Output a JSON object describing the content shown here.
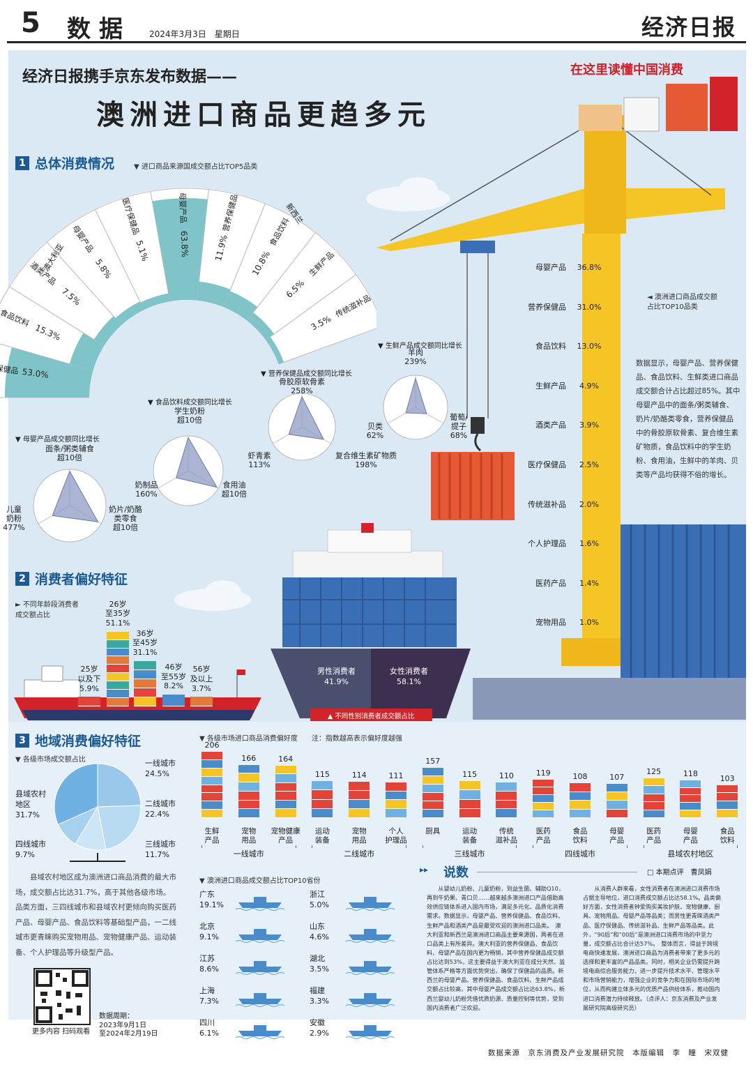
{
  "masthead": {
    "page_num": "5",
    "section": "数据",
    "date": "2024年3月3日　星期日",
    "logo": "经济日报"
  },
  "headline": {
    "sub": "经济日报携手京东发布数据——",
    "main": "澳洲进口商品更趋多元",
    "column_tag": "在这里读懂中国消费"
  },
  "section1": {
    "title": "总体消费情况",
    "origin_caption": "进口商品来源国成交额占比TOP5品类",
    "australia": {
      "country": "澳大利亚",
      "items": [
        {
          "name": "营养保健品",
          "value": "53.0%",
          "pct": 53.0
        },
        {
          "name": "食品饮料",
          "value": "15.3%",
          "pct": 15.3
        },
        {
          "name": "酒类产品",
          "value": "7.5%",
          "pct": 7.5
        },
        {
          "name": "母婴产品",
          "value": "5.8%",
          "pct": 5.8
        },
        {
          "name": "医疗保健品",
          "value": "5.1%",
          "pct": 5.1
        }
      ]
    },
    "newzealand": {
      "country": "新西兰",
      "items": [
        {
          "name": "母婴产品",
          "value": "63.8%",
          "pct": 63.8
        },
        {
          "name": "营养保健品",
          "value": "11.9%",
          "pct": 11.9
        },
        {
          "name": "食品饮料",
          "value": "10.8%",
          "pct": 10.8
        },
        {
          "name": "生鲜产品",
          "value": "6.5%",
          "pct": 6.5
        },
        {
          "name": "传统滋补品",
          "value": "3.5%",
          "pct": 3.5
        }
      ]
    },
    "radars": [
      {
        "caption": "母婴产品成交额同比增长",
        "labels": [
          "面条/粥类辅食\n超10倍",
          "奶片/奶酪\n类零食\n超10倍",
          "儿童\n奶粉\n477%"
        ]
      },
      {
        "caption": "食品饮料成交额同比增长",
        "labels": [
          "学生奶粉\n超10倍",
          "食用油\n超10倍",
          "奶制品\n160%"
        ]
      },
      {
        "caption": "营养保健品成交额同比增长",
        "labels": [
          "骨胶原软骨素\n258%",
          "复合维生素矿物质\n198%",
          "虾青素\n113%"
        ]
      },
      {
        "caption": "生鲜产品成交额同比增长",
        "labels": [
          "羊肉\n239%",
          "葡萄/\n提子\n68%",
          "贝类\n62%"
        ]
      }
    ],
    "top10_caption": "澳洲进口商品成交额\n占比TOP10品类",
    "top10": [
      {
        "name": "母婴产品",
        "value": "36.8%"
      },
      {
        "name": "营养保健品",
        "value": "31.0%"
      },
      {
        "name": "食品饮料",
        "value": "13.0%"
      },
      {
        "name": "生鲜产品",
        "value": "4.9%"
      },
      {
        "name": "酒类产品",
        "value": "3.9%"
      },
      {
        "name": "医疗保健品",
        "value": "2.5%"
      },
      {
        "name": "传统滋补品",
        "value": "2.0%"
      },
      {
        "name": "个人护理品",
        "value": "1.6%"
      },
      {
        "name": "医药产品",
        "value": "1.4%"
      },
      {
        "name": "宠物用品",
        "value": "1.0%"
      }
    ],
    "note": "数据显示，母婴产品、营养保健品、食品饮料、生鲜类进口商品成交额合计占比超过85%。其中母婴产品中的面条/粥类辅食、奶片/奶酪类零食，营养保健品中的骨胶原软骨素、复合维生素矿物质，食品饮料中的学生奶粉、食用油，生鲜中的羊肉、贝类等产品均获得不俗的增长。"
  },
  "section2": {
    "title": "消费者偏好特征",
    "age_caption": "不同年龄段消费者\n成交额占比",
    "ages": [
      {
        "label": "25岁\n以及下",
        "value": "5.9%",
        "pct": 5.9
      },
      {
        "label": "26岁\n至35岁",
        "value": "51.1%",
        "pct": 51.1
      },
      {
        "label": "36岁\n至45岁",
        "value": "31.1%",
        "pct": 31.1
      },
      {
        "label": "46岁\n至55岁",
        "value": "8.2%",
        "pct": 8.2
      },
      {
        "label": "56岁\n及以上",
        "value": "3.7%",
        "pct": 3.7
      }
    ],
    "gender": [
      {
        "label": "男性消费者",
        "value": "41.9%"
      },
      {
        "label": "女性消费者",
        "value": "58.1%"
      }
    ],
    "gender_caption": "不同性别消费者成交额占比"
  },
  "section3": {
    "title": "地域消费偏好特征",
    "pie_caption": "各级市场成交额占比",
    "pie": [
      {
        "label": "一线城市",
        "value": "24.5%",
        "pct": 24.5,
        "color": "#9ac8ea"
      },
      {
        "label": "二线城市",
        "value": "22.4%",
        "pct": 22.4,
        "color": "#b8dbf2"
      },
      {
        "label": "三线城市",
        "value": "11.7%",
        "pct": 11.7,
        "color": "#cde6f7"
      },
      {
        "label": "四线城市",
        "value": "9.7%",
        "pct": 9.7,
        "color": "#a6d1ef"
      },
      {
        "label": "县域农村\n地区",
        "value": "31.7%",
        "pct": 31.7,
        "color": "#6fb1e3"
      }
    ],
    "pref_caption": "各级市场进口商品消费偏好度",
    "pref_note": "注：指数越高表示偏好度越强",
    "chart_data": {
      "type": "bar",
      "categories": [
        "生鲜产品",
        "宠物用品",
        "宠物健康产品",
        "运动装备",
        "宠物用品",
        "个人护理品",
        "厨具",
        "运动装备",
        "传统滋补品",
        "医药产品",
        "食品饮料",
        "母婴产品",
        "医药产品",
        "母婴产品",
        "食品饮料"
      ],
      "values": [
        206,
        166,
        164,
        115,
        114,
        111,
        157,
        115,
        110,
        119,
        108,
        107,
        125,
        118,
        103
      ],
      "groups": [
        "一线城市",
        "二线城市",
        "三线城市",
        "四线城市",
        "县域农村地区"
      ]
    },
    "cat_labels": [
      "生鲜\n产品",
      "宠物\n用品",
      "宠物健康\n产品",
      "运动\n装备",
      "宠物\n用品",
      "个人\n护理品",
      "厨具",
      "运动\n装备",
      "传统\n滋补品",
      "医药\n产品",
      "食品\n饮料",
      "母婴\n产品",
      "医药\n产品",
      "母婴\n产品",
      "食品\n饮料"
    ],
    "prov_caption": "澳洲进口商品成交额占比TOP10省份",
    "provinces": [
      {
        "name": "广东",
        "value": "19.1%"
      },
      {
        "name": "浙江",
        "value": "5.0%"
      },
      {
        "name": "北京",
        "value": "9.1%"
      },
      {
        "name": "山东",
        "value": "4.6%"
      },
      {
        "name": "江苏",
        "value": "8.6%"
      },
      {
        "name": "湖北",
        "value": "3.5%"
      },
      {
        "name": "上海",
        "value": "7.3%"
      },
      {
        "name": "福建",
        "value": "3.3%"
      },
      {
        "name": "四川",
        "value": "6.1%"
      },
      {
        "name": "安徽",
        "value": "2.9%"
      }
    ],
    "summary": "县域农村地区成为澳洲进口商品消费的最大市场，成交额占比达31.7%，高于其他各级市场。品类方面，三四线城市和县域农村更倾向购买医药产品、母婴产品、食品饮料等基础型产品，一二线城市更青睐购买宠物用品、宠物健康产品、运动装备、个人护理品等升级型产品。",
    "qr_caption": "更多内容 扫码观看",
    "period": "数据周期：\n2023年9月1日\n至2024年2月19日"
  },
  "comment": {
    "title": "说数",
    "author": "本期点评　曹凤娟",
    "col1": "从婴幼儿奶粉、儿童奶粉，到益生菌、辅助Q10，再到牛奶果、青口贝……越来越多澳洲进口产品借助高效供应链体系进入国内市场，满足多元化、品质化消费需求。数据显示，母婴产品、营养保健品、食品饮料、生鲜产品和酒类产品是最受欢迎的澳洲进口品类。　澳大利亚和新西兰是澳洲进口商品主要来源国，两者在进口品类上有所差异。澳大利亚的营养保健品、食品饮料、母婴产品在国内更为畅销，其中营养保健品成交额占比达到53%，这主要得益于澳大利亚在成分天然、监管体系严格等方面优势突出，确保了保健品的品质。新西兰的母婴产品、营养保健品、食品饮料、生鲜产品成交额占比较高，其中母婴产品成交额占比达63.8%，新西兰婴幼儿奶粉凭借优质奶源、质量控制等优势，受到国内消费者广泛欢迎。",
    "col2": "从消费人群来看，女性消费者在澳洲进口消费市场占据主导地位，进口消费成交额占比达58.1%。品类偏好方面，女性消费者钟爱购买美妆护肤、宠物健康、厨具、宠物用品、母婴产品等品类；而男性更青睐酒类产品、医疗保健品、传统滋补品、生鲜产品等品类。此外，“90后”和“00后”是澳洲进口消费市场的中坚力量，成交额占比合计达57%。　整体而言，得益于跨境电商快速发展，澳洲进口商品为消费者带来了更多元的选择和更丰富的产品品类。同时，相关企业仍需提升跨境电商综合服务能力，进一步提升技术水平、管理水平和市场营销能力，增强企业的竞争力和在国际市场的地位，从而构建立体多元的优质产品供给体系，推动国内进口消费潜力持续释放。（点评人：京东消费及产业发展研究院高级研究员）"
  },
  "footer": "数据来源　京东消费及产业发展研究院　本版编辑　李　瞳　宋双健",
  "colors": {
    "accent": "#1c5a93",
    "teal": "#7ec4c9",
    "crane_yellow": "#f5c425",
    "red": "#e2443a",
    "container_blue": "#3b6fb5"
  }
}
